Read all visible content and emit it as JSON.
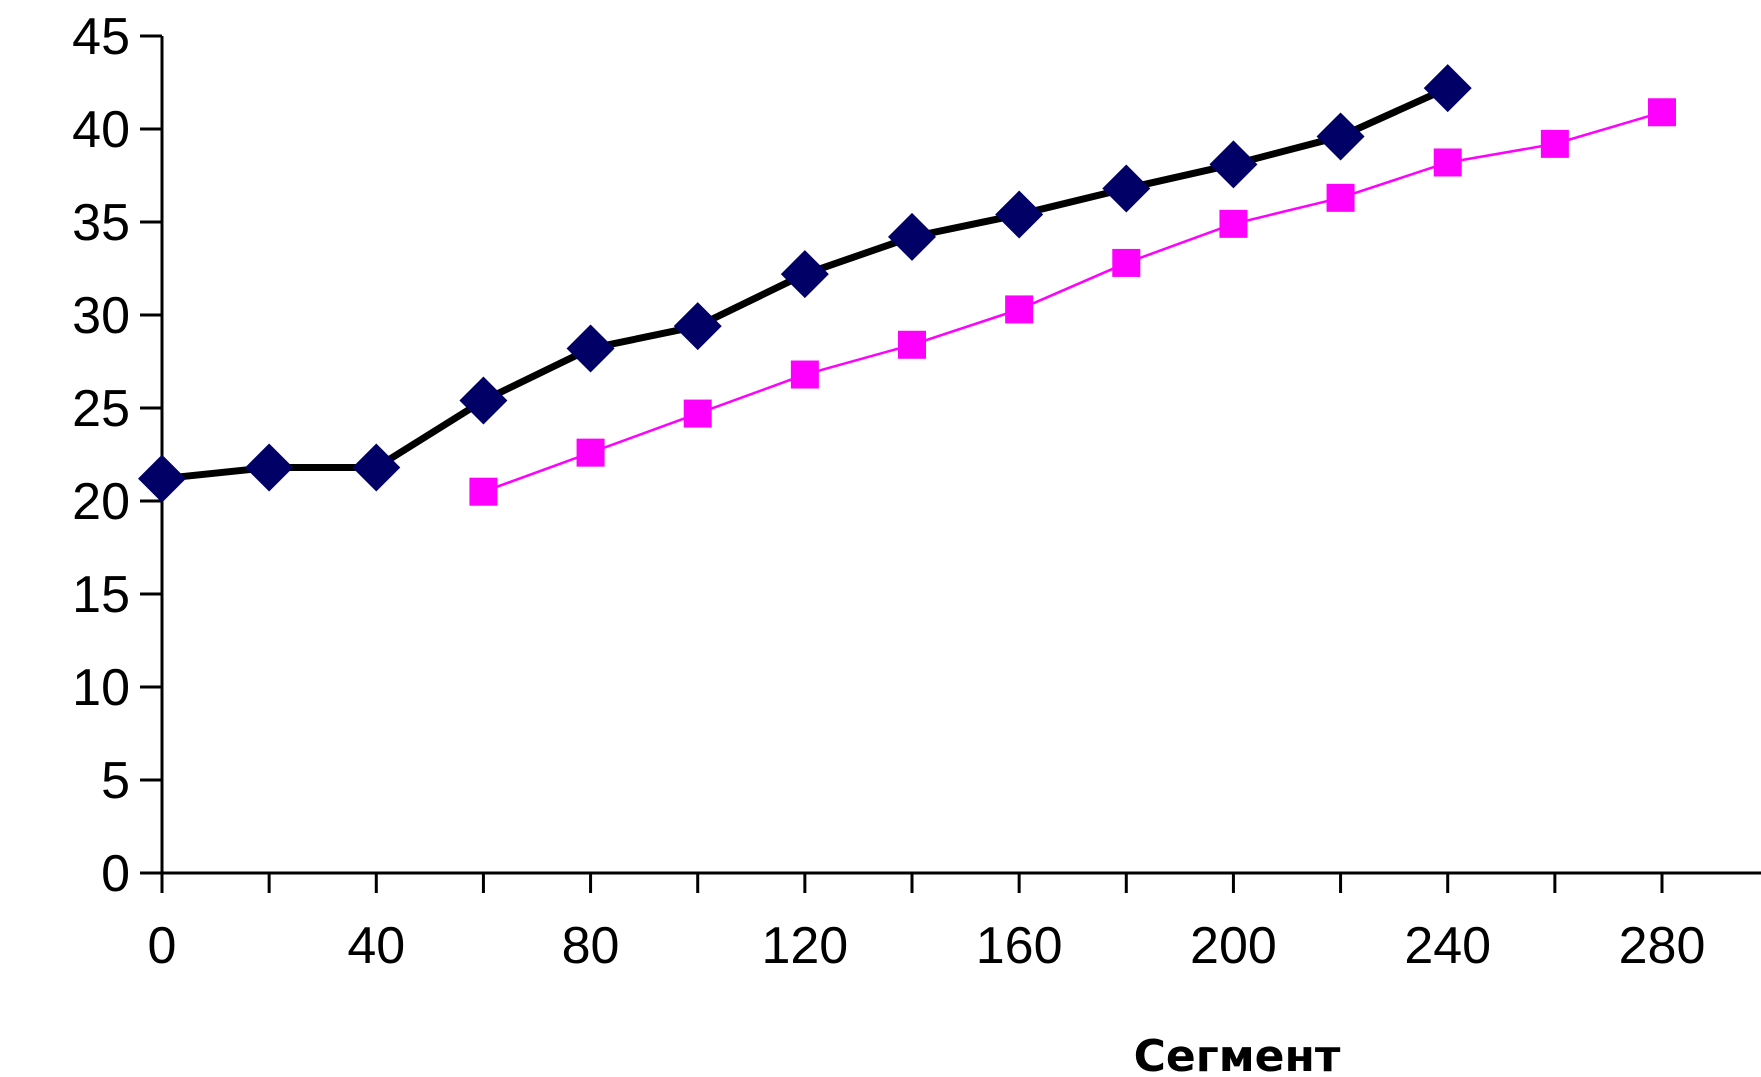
{
  "chart_data": {
    "type": "line",
    "title": "",
    "xlabel": "Сегмент",
    "ylabel": "",
    "xlim": [
      0,
      280
    ],
    "ylim": [
      0,
      45
    ],
    "x_ticks": [
      0,
      40,
      80,
      120,
      160,
      200,
      240,
      280
    ],
    "y_ticks": [
      0,
      5,
      10,
      15,
      20,
      25,
      30,
      35,
      40,
      45
    ],
    "grid": false,
    "legend": "none",
    "series": [
      {
        "color": "#000066",
        "line_color": "#000000",
        "marker": "diamond",
        "x": [
          0,
          20,
          40,
          60,
          80,
          100,
          120,
          140,
          160,
          180,
          200,
          220,
          240
        ],
        "y": [
          21.2,
          21.8,
          21.8,
          25.4,
          28.2,
          29.4,
          32.2,
          34.2,
          35.4,
          36.8,
          38.1,
          39.6,
          42.2
        ]
      },
      {
        "color": "#ff00ff",
        "line_color": "#ff00ff",
        "marker": "square",
        "x": [
          60,
          80,
          100,
          120,
          140,
          160,
          180,
          200,
          220,
          240,
          260,
          280
        ],
        "y": [
          20.5,
          22.6,
          24.7,
          26.8,
          28.4,
          30.3,
          32.8,
          34.9,
          36.3,
          38.2,
          39.2,
          40.9
        ]
      }
    ]
  }
}
